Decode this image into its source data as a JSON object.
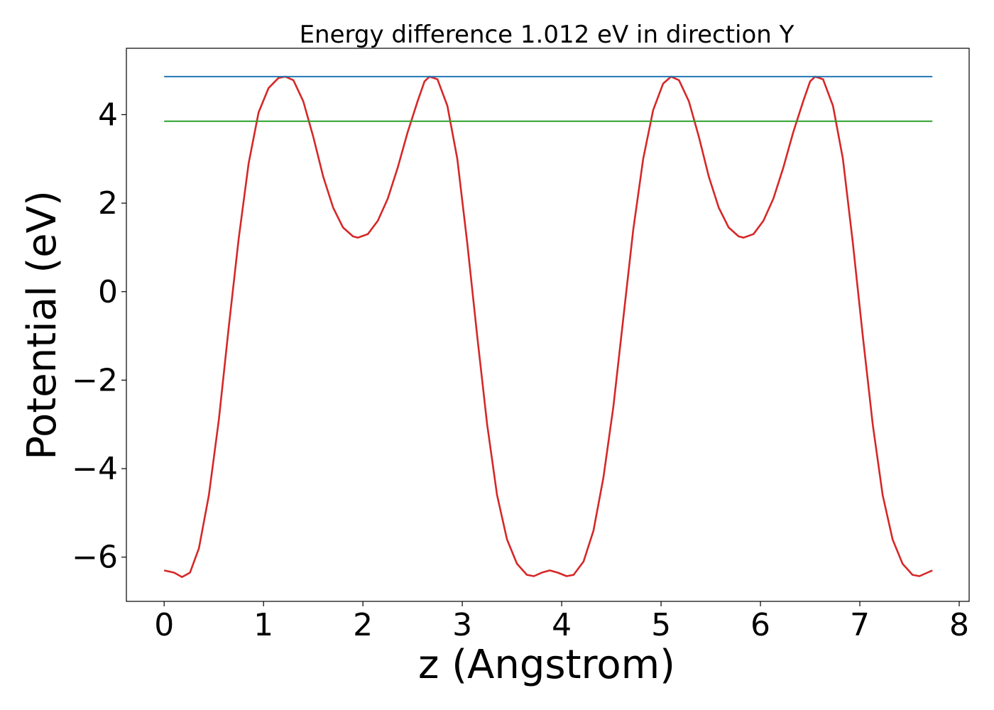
{
  "chart_data": {
    "type": "line",
    "title": "Energy difference 1.012 eV in direction Y",
    "xlabel": "z (Angstrom)",
    "ylabel": "Potential (eV)",
    "xlim": [
      -0.38,
      8.1
    ],
    "ylim": [
      -7.0,
      5.5
    ],
    "xticks": [
      0,
      1,
      2,
      3,
      4,
      5,
      6,
      7,
      8
    ],
    "xtick_labels": [
      "0",
      "1",
      "2",
      "3",
      "4",
      "5",
      "6",
      "7",
      "8"
    ],
    "yticks": [
      -6,
      -4,
      -2,
      0,
      2,
      4
    ],
    "ytick_labels": [
      "−6",
      "−4",
      "−2",
      "0",
      "2",
      "4"
    ],
    "grid": false,
    "legend": "none",
    "series": [
      {
        "color": "#d62728",
        "points": [
          [
            0.0,
            -6.3
          ],
          [
            0.1,
            -6.35
          ],
          [
            0.18,
            -6.45
          ],
          [
            0.26,
            -6.35
          ],
          [
            0.35,
            -5.8
          ],
          [
            0.45,
            -4.6
          ],
          [
            0.55,
            -2.9
          ],
          [
            0.65,
            -0.8
          ],
          [
            0.75,
            1.2
          ],
          [
            0.85,
            2.9
          ],
          [
            0.95,
            4.05
          ],
          [
            1.05,
            4.6
          ],
          [
            1.15,
            4.83
          ],
          [
            1.22,
            4.86
          ],
          [
            1.3,
            4.78
          ],
          [
            1.4,
            4.3
          ],
          [
            1.5,
            3.5
          ],
          [
            1.6,
            2.6
          ],
          [
            1.7,
            1.9
          ],
          [
            1.8,
            1.45
          ],
          [
            1.9,
            1.25
          ],
          [
            1.95,
            1.22
          ],
          [
            2.05,
            1.3
          ],
          [
            2.15,
            1.6
          ],
          [
            2.25,
            2.1
          ],
          [
            2.35,
            2.8
          ],
          [
            2.45,
            3.6
          ],
          [
            2.55,
            4.3
          ],
          [
            2.62,
            4.75
          ],
          [
            2.67,
            4.86
          ],
          [
            2.75,
            4.8
          ],
          [
            2.85,
            4.2
          ],
          [
            2.95,
            3.0
          ],
          [
            3.05,
            1.1
          ],
          [
            3.15,
            -1.0
          ],
          [
            3.25,
            -3.0
          ],
          [
            3.35,
            -4.6
          ],
          [
            3.45,
            -5.6
          ],
          [
            3.55,
            -6.15
          ],
          [
            3.65,
            -6.4
          ],
          [
            3.72,
            -6.43
          ],
          [
            3.8,
            -6.35
          ],
          [
            3.88,
            -6.3
          ],
          [
            3.96,
            -6.35
          ],
          [
            4.05,
            -6.43
          ],
          [
            4.12,
            -6.4
          ],
          [
            4.22,
            -6.1
          ],
          [
            4.32,
            -5.4
          ],
          [
            4.42,
            -4.2
          ],
          [
            4.52,
            -2.6
          ],
          [
            4.62,
            -0.6
          ],
          [
            4.72,
            1.4
          ],
          [
            4.82,
            3.0
          ],
          [
            4.92,
            4.1
          ],
          [
            5.02,
            4.7
          ],
          [
            5.1,
            4.86
          ],
          [
            5.18,
            4.78
          ],
          [
            5.28,
            4.3
          ],
          [
            5.38,
            3.5
          ],
          [
            5.48,
            2.6
          ],
          [
            5.58,
            1.9
          ],
          [
            5.68,
            1.45
          ],
          [
            5.78,
            1.25
          ],
          [
            5.83,
            1.22
          ],
          [
            5.93,
            1.3
          ],
          [
            6.03,
            1.6
          ],
          [
            6.13,
            2.1
          ],
          [
            6.23,
            2.8
          ],
          [
            6.33,
            3.6
          ],
          [
            6.43,
            4.3
          ],
          [
            6.5,
            4.75
          ],
          [
            6.55,
            4.86
          ],
          [
            6.63,
            4.8
          ],
          [
            6.73,
            4.2
          ],
          [
            6.83,
            3.0
          ],
          [
            6.93,
            1.1
          ],
          [
            7.03,
            -1.0
          ],
          [
            7.13,
            -3.0
          ],
          [
            7.23,
            -4.6
          ],
          [
            7.33,
            -5.6
          ],
          [
            7.43,
            -6.15
          ],
          [
            7.53,
            -6.4
          ],
          [
            7.6,
            -6.43
          ],
          [
            7.68,
            -6.35
          ],
          [
            7.73,
            -6.3
          ]
        ]
      },
      {
        "color": "#1f77b4",
        "points": [
          [
            0.0,
            4.86
          ],
          [
            7.73,
            4.86
          ]
        ]
      },
      {
        "color": "#2ca02c",
        "points": [
          [
            0.0,
            3.85
          ],
          [
            7.73,
            3.85
          ]
        ]
      }
    ]
  }
}
